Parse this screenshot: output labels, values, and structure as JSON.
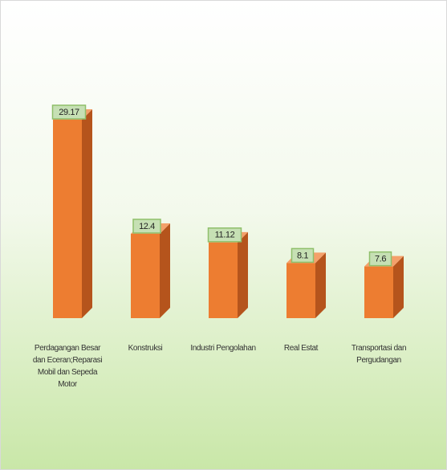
{
  "chart_data": {
    "type": "bar3d",
    "categories": [
      "Perdagangan Besar dan Eceran;Reparasi Mobil dan Sepeda Motor",
      "Konstruksi",
      "Industri Pengolahan",
      "Real Estat",
      "Transportasi dan Pergudangan"
    ],
    "values": [
      29.17,
      12.4,
      11.12,
      8.1,
      7.6
    ],
    "value_labels": [
      "29.17",
      "12.4",
      "11.12",
      "8.1",
      "7.6"
    ],
    "color": "#ed7d31"
  }
}
